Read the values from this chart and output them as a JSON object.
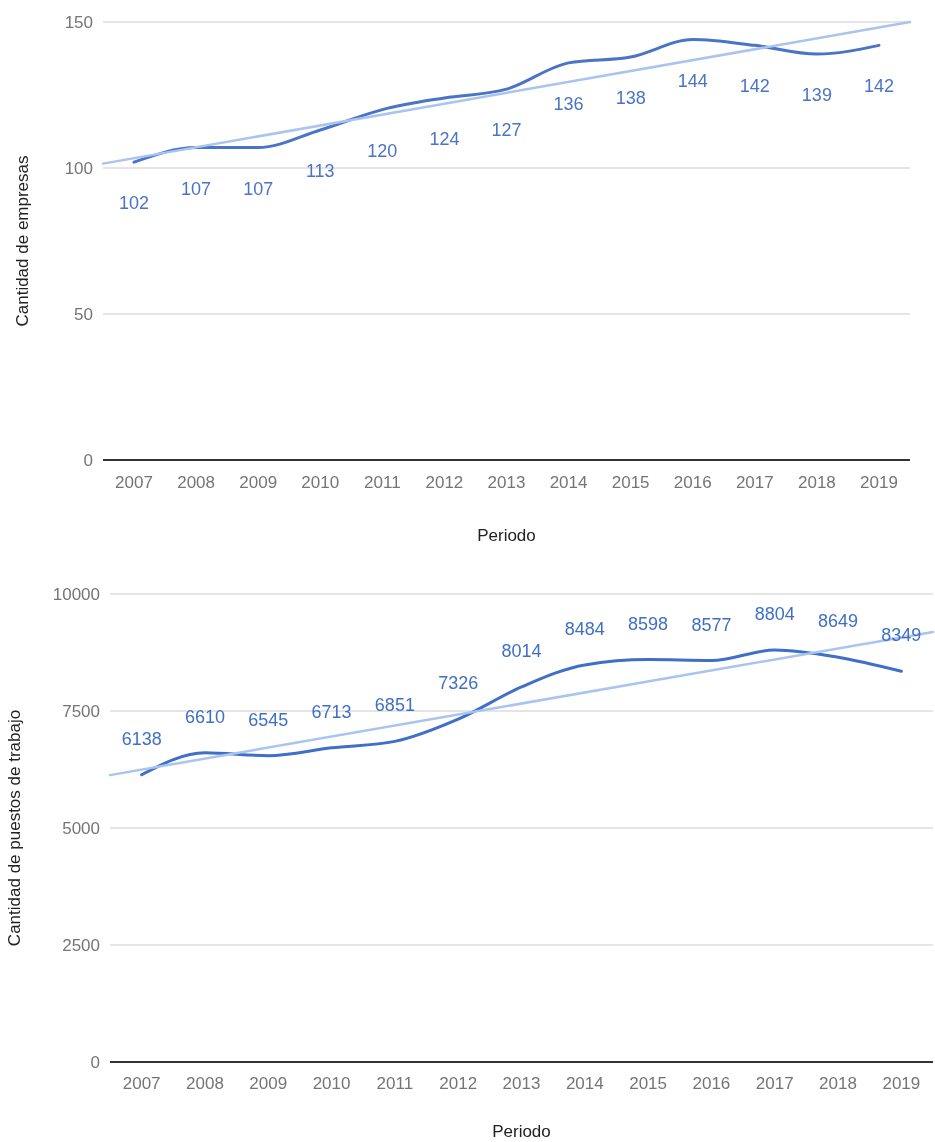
{
  "chart_data": [
    {
      "type": "line",
      "xlabel": "Periodo",
      "ylabel": "Cantidad de empresas",
      "xlim": [
        2006.5,
        2019.5
      ],
      "xticks": [
        2007,
        2008,
        2009,
        2010,
        2011,
        2012,
        2013,
        2014,
        2015,
        2016,
        2017,
        2018,
        2019
      ],
      "ylim": [
        0,
        150
      ],
      "yticks": [
        0,
        50,
        100,
        150
      ],
      "grid": "y",
      "series": [
        {
          "color": "#4a74c4",
          "x": [
            2007,
            2008,
            2009,
            2010,
            2011,
            2012,
            2013,
            2014,
            2015,
            2016,
            2017,
            2018,
            2019
          ],
          "values": [
            102,
            107,
            107,
            113,
            120,
            124,
            127,
            136,
            138,
            144,
            142,
            139,
            142
          ],
          "value_labels": [
            "102",
            "107",
            "107",
            "113",
            "120",
            "124",
            "127",
            "136",
            "138",
            "144",
            "142",
            "139",
            "142"
          ]
        },
        {
          "color": "#a9c4ee",
          "x": [
            2006.5,
            2019.5
          ],
          "values": [
            101.5,
            150
          ]
        }
      ]
    },
    {
      "type": "line",
      "xlabel": "Periodo",
      "ylabel": "Cantidad de puestos de trabajo",
      "xlim": [
        2006.5,
        2019.5
      ],
      "xticks": [
        2007,
        2008,
        2009,
        2010,
        2011,
        2012,
        2013,
        2014,
        2015,
        2016,
        2017,
        2018,
        2019
      ],
      "ylim": [
        0,
        10000
      ],
      "yticks": [
        0,
        2500,
        5000,
        7500,
        10000
      ],
      "grid": "y",
      "series": [
        {
          "color": "#3f6fc6",
          "x": [
            2007,
            2008,
            2009,
            2010,
            2011,
            2012,
            2013,
            2014,
            2015,
            2016,
            2017,
            2018,
            2019
          ],
          "values": [
            6138,
            6610,
            6545,
            6713,
            6851,
            7326,
            8014,
            8484,
            8598,
            8577,
            8804,
            8649,
            8349
          ],
          "value_labels": [
            "6138",
            "6610",
            "6545",
            "6713",
            "6851",
            "7326",
            "8014",
            "8484",
            "8598",
            "8577",
            "8804",
            "8649",
            "8349"
          ]
        },
        {
          "color": "#a9c4ee",
          "x": [
            2006.5,
            2019.5
          ],
          "values": [
            6130,
            9190
          ]
        }
      ]
    }
  ]
}
